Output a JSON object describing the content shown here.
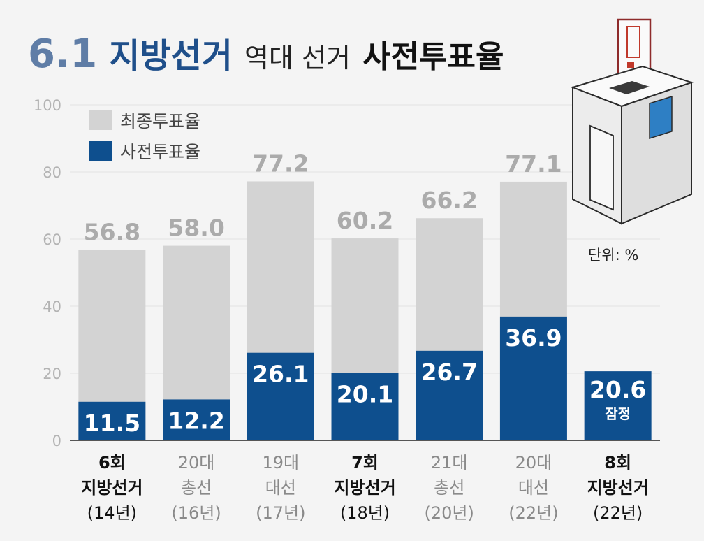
{
  "title": {
    "number": "6.1",
    "main": "지방선거",
    "middle": "역대 선거",
    "end": "사전투표율"
  },
  "unit": "단위: %",
  "colors": {
    "total": "#d3d3d3",
    "early": "#0e4f8e",
    "axis": "#555555",
    "grid": "#e2e2e2"
  },
  "chart_data": {
    "type": "bar",
    "title": "6.1 지방선거 역대 선거 사전투표율",
    "ylim": [
      0,
      100
    ],
    "yticks": [
      "0",
      "20",
      "40",
      "60",
      "80",
      "100"
    ],
    "legend": {
      "placement": "top-left"
    },
    "categories": [
      {
        "lines": [
          "6회",
          "지방선거",
          "(14년)"
        ],
        "emphasis": true
      },
      {
        "lines": [
          "20대",
          "총선",
          "(16년)"
        ],
        "emphasis": false
      },
      {
        "lines": [
          "19대",
          "대선",
          "(17년)"
        ],
        "emphasis": false
      },
      {
        "lines": [
          "7회",
          "지방선거",
          "(18년)"
        ],
        "emphasis": true
      },
      {
        "lines": [
          "21대",
          "총선",
          "(20년)"
        ],
        "emphasis": false
      },
      {
        "lines": [
          "20대",
          "대선",
          "(22년)"
        ],
        "emphasis": false
      },
      {
        "lines": [
          "8회",
          "지방선거",
          "(22년)"
        ],
        "emphasis": true
      }
    ],
    "series": [
      {
        "name": "최종투표율",
        "values": [
          56.8,
          58.0,
          77.2,
          60.2,
          66.2,
          77.1,
          null
        ],
        "labels": [
          "56.8",
          "58.0",
          "77.2",
          "60.2",
          "66.2",
          "77.1",
          ""
        ]
      },
      {
        "name": "사전투표율",
        "values": [
          11.5,
          12.2,
          26.1,
          20.1,
          26.7,
          36.9,
          20.6
        ],
        "labels": [
          "11.5",
          "12.2",
          "26.1",
          "20.1",
          "26.7",
          "36.9",
          "20.6"
        ]
      }
    ],
    "annotations": [
      {
        "category_index": 6,
        "text": "잠정"
      }
    ]
  }
}
